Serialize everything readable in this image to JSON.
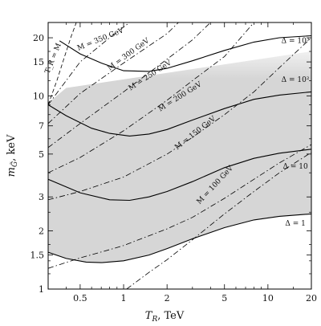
{
  "chart_data": {
    "type": "line",
    "xlabel": "T_R, TeV",
    "ylabel": "m_G, keV",
    "xlim": [
      0.3,
      20
    ],
    "ylim": [
      1,
      24
    ],
    "xscale": "log",
    "yscale": "log",
    "xticks": [
      "0.5",
      "1",
      "2",
      "5",
      "10",
      "20"
    ],
    "yticks": [
      "1",
      "1.5",
      "2",
      "3",
      "5",
      "7",
      "10",
      "15",
      "20"
    ],
    "grid": false,
    "shaded_region": {
      "lower": [
        [
          0.3,
          1.55
        ],
        [
          0.4,
          1.44
        ],
        [
          0.55,
          1.38
        ],
        [
          0.7,
          1.37
        ],
        [
          1,
          1.4
        ],
        [
          1.5,
          1.5
        ],
        [
          2,
          1.62
        ],
        [
          3,
          1.82
        ],
        [
          5,
          2.08
        ],
        [
          8,
          2.28
        ],
        [
          12,
          2.38
        ],
        [
          20,
          2.45
        ]
      ],
      "upper": [
        [
          0.3,
          9.2
        ],
        [
          0.4,
          11.0
        ],
        [
          20,
          17.0
        ]
      ]
    },
    "series": [
      {
        "style": "solid",
        "label": "Δ=1",
        "points": [
          [
            0.3,
            1.55
          ],
          [
            0.4,
            1.44
          ],
          [
            0.55,
            1.38
          ],
          [
            0.7,
            1.37
          ],
          [
            1,
            1.4
          ],
          [
            1.5,
            1.5
          ],
          [
            2,
            1.62
          ],
          [
            3,
            1.82
          ],
          [
            5,
            2.08
          ],
          [
            8,
            2.28
          ],
          [
            12,
            2.38
          ],
          [
            20,
            2.45
          ]
        ]
      },
      {
        "style": "solid",
        "label": "Δ=10",
        "points": [
          [
            0.3,
            3.7
          ],
          [
            0.5,
            3.15
          ],
          [
            0.8,
            2.9
          ],
          [
            1.1,
            2.88
          ],
          [
            1.5,
            3.0
          ],
          [
            2,
            3.2
          ],
          [
            3,
            3.6
          ],
          [
            5,
            4.25
          ],
          [
            8,
            4.75
          ],
          [
            12,
            5.05
          ],
          [
            20,
            5.3
          ]
        ]
      },
      {
        "style": "solid",
        "label": "Δ=10²",
        "points": [
          [
            0.3,
            9.0
          ],
          [
            0.4,
            7.9
          ],
          [
            0.6,
            6.8
          ],
          [
            0.8,
            6.4
          ],
          [
            1.1,
            6.2
          ],
          [
            1.5,
            6.35
          ],
          [
            2,
            6.7
          ],
          [
            3,
            7.5
          ],
          [
            5,
            8.6
          ],
          [
            8,
            9.6
          ],
          [
            12,
            10.1
          ],
          [
            20,
            10.5
          ]
        ]
      },
      {
        "style": "solid",
        "label": "Δ=10³",
        "points": [
          [
            0.36,
            19.3
          ],
          [
            0.5,
            16.5
          ],
          [
            0.7,
            14.8
          ],
          [
            1.0,
            13.5
          ],
          [
            1.5,
            13.4
          ],
          [
            2,
            13.9
          ],
          [
            3,
            15.2
          ],
          [
            5,
            17.2
          ],
          [
            8,
            19.0
          ],
          [
            12,
            20.0
          ],
          [
            20,
            20.5
          ]
        ]
      },
      {
        "style": "dashed",
        "label": "T_R = M",
        "points": [
          [
            0.3,
            9.0
          ],
          [
            0.345,
            12.0
          ],
          [
            0.39,
            16.0
          ],
          [
            0.43,
            20.0
          ],
          [
            0.47,
            24.0
          ]
        ]
      },
      {
        "style": "dashdot",
        "label": "M = 350 GeV",
        "points": [
          [
            0.3,
            9.0
          ],
          [
            0.5,
            15.0
          ],
          [
            0.8,
            20.0
          ],
          [
            1.1,
            24.0
          ]
        ]
      },
      {
        "style": "dashdot",
        "label": "M = 300 GeV",
        "points": [
          [
            0.3,
            7.2
          ],
          [
            0.5,
            10.3
          ],
          [
            1,
            14.8
          ],
          [
            2,
            21.0
          ],
          [
            2.4,
            24.0
          ]
        ]
      },
      {
        "style": "dashdot",
        "label": "M = 250 GeV",
        "points": [
          [
            0.3,
            5.4
          ],
          [
            0.5,
            7.2
          ],
          [
            1,
            10.5
          ],
          [
            2,
            15.5
          ],
          [
            3,
            19.5
          ],
          [
            4,
            24.0
          ]
        ]
      },
      {
        "style": "dashdot",
        "label": "M = 200 GeV",
        "points": [
          [
            0.3,
            4.0
          ],
          [
            0.5,
            4.8
          ],
          [
            1,
            6.6
          ],
          [
            2,
            9.5
          ],
          [
            3,
            12.0
          ],
          [
            5,
            16.0
          ],
          [
            8,
            24.0
          ]
        ]
      },
      {
        "style": "dashdot",
        "label": "M = 150 GeV",
        "points": [
          [
            0.3,
            2.9
          ],
          [
            0.5,
            3.2
          ],
          [
            1,
            3.8
          ],
          [
            2,
            5.0
          ],
          [
            3,
            6.1
          ],
          [
            5,
            8.0
          ],
          [
            8,
            10.5
          ],
          [
            12,
            14.0
          ],
          [
            20,
            20.0
          ]
        ]
      },
      {
        "style": "dashdot",
        "label": "M = 100 GeV",
        "points": [
          [
            0.3,
            1.28
          ],
          [
            0.5,
            1.45
          ],
          [
            0.8,
            1.6
          ],
          [
            1,
            1.68
          ],
          [
            2,
            2.05
          ],
          [
            3,
            2.35
          ],
          [
            5,
            2.95
          ],
          [
            8,
            3.7
          ],
          [
            12,
            4.5
          ],
          [
            20,
            5.6
          ]
        ]
      },
      {
        "style": "dashdot",
        "label": "",
        "points": [
          [
            1.05,
            1.0
          ],
          [
            1.5,
            1.22
          ],
          [
            2,
            1.42
          ],
          [
            3,
            1.8
          ],
          [
            5,
            2.45
          ],
          [
            8,
            3.2
          ],
          [
            12,
            4.0
          ],
          [
            20,
            5.1
          ]
        ]
      }
    ],
    "annotations": [
      {
        "text": "T_R = M",
        "x": 0.335,
        "y": 15.5,
        "rotate": -68
      },
      {
        "text": "M = 350 GeV",
        "x": 0.7,
        "y": 19.2,
        "rotate": -22
      },
      {
        "text": "M = 300 GeV",
        "x": 1.1,
        "y": 16.1,
        "rotate": -36
      },
      {
        "text": "M = 250 GeV",
        "x": 1.55,
        "y": 12.5,
        "rotate": -33
      },
      {
        "text": "M = 200 GeV",
        "x": 2.5,
        "y": 9.7,
        "rotate": -32
      },
      {
        "text": "M = 150 GeV",
        "x": 3.2,
        "y": 6.3,
        "rotate": -38
      },
      {
        "text": "M = 100 GeV",
        "x": 4.4,
        "y": 3.4,
        "rotate": -47
      },
      {
        "text": "Δ = 10³",
        "x": 15.5,
        "y": 18.8,
        "rotate": 0
      },
      {
        "text": "Δ = 10²",
        "x": 15.5,
        "y": 11.8,
        "rotate": 0
      },
      {
        "text": "Δ = 10",
        "x": 15.5,
        "y": 4.2,
        "rotate": 0
      },
      {
        "text": "Δ = 1",
        "x": 15.5,
        "y": 2.13,
        "rotate": 0
      }
    ]
  }
}
